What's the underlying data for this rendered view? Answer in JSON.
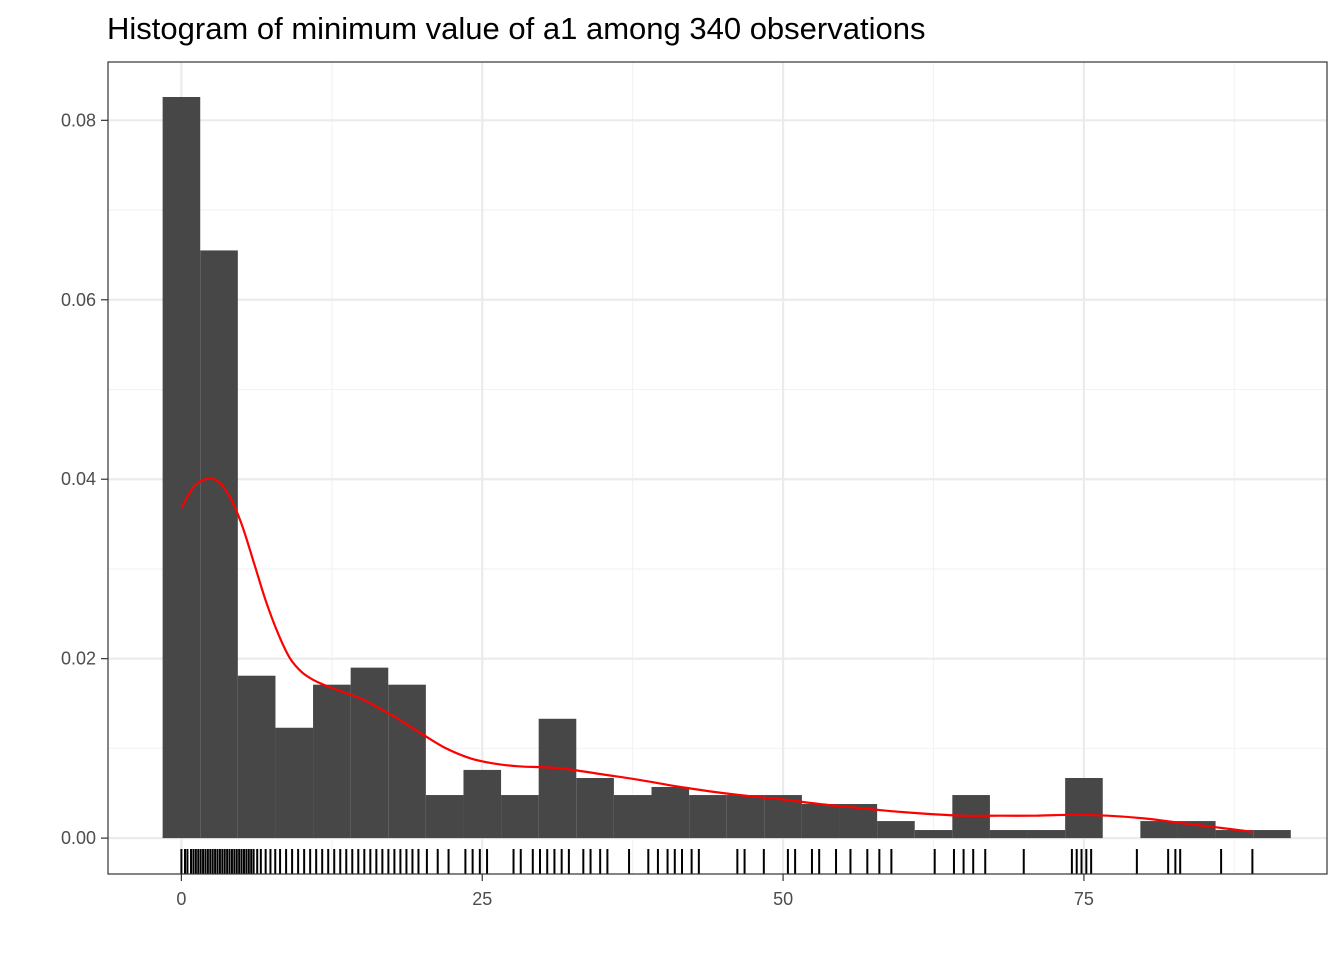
{
  "chart_data": {
    "type": "bar",
    "title": "Histogram of minimum value of a1 among 340 observations",
    "xlabel": "",
    "ylabel": "",
    "xlim": [
      -6.1,
      95.2
    ],
    "ylim": [
      -0.004,
      0.0865
    ],
    "x_ticks": [
      0,
      25,
      50,
      75
    ],
    "x_tick_labels": [
      "0",
      "25",
      "50",
      "75"
    ],
    "y_ticks": [
      0,
      0.02,
      0.04,
      0.06,
      0.08
    ],
    "y_tick_labels": [
      "0.00",
      "0.02",
      "0.04",
      "0.06",
      "0.08"
    ],
    "grid": true,
    "bins": {
      "start": -1.56,
      "width": 3.125,
      "density": [
        0.0826,
        0.0655,
        0.0181,
        0.0123,
        0.0171,
        0.019,
        0.0171,
        0.0048,
        0.0076,
        0.0048,
        0.0133,
        0.0067,
        0.0048,
        0.0057,
        0.0048,
        0.0048,
        0.0048,
        0.0038,
        0.0038,
        0.0019,
        0.0009,
        0.0048,
        0.0009,
        0.0009,
        0.0067,
        0.0,
        0.0019,
        0.0019,
        0.0009,
        0.0009
      ],
      "fill": "#474747"
    },
    "density_curve": {
      "color": "#ff0000",
      "x": [
        0,
        1,
        2,
        3,
        4,
        5,
        6,
        7,
        8,
        9,
        10,
        11,
        12,
        13,
        14,
        15,
        16,
        18,
        20,
        22,
        24,
        26,
        28,
        30,
        32,
        35,
        38,
        41,
        44,
        47,
        50,
        53,
        56,
        59,
        62,
        65,
        68,
        71,
        74,
        77,
        80,
        83,
        86,
        89
      ],
      "y": [
        0.0368,
        0.0391,
        0.04,
        0.0398,
        0.0381,
        0.035,
        0.0308,
        0.0265,
        0.0229,
        0.0201,
        0.0185,
        0.0176,
        0.017,
        0.0165,
        0.016,
        0.0155,
        0.0148,
        0.0133,
        0.0116,
        0.01,
        0.0089,
        0.0083,
        0.008,
        0.0079,
        0.0077,
        0.0071,
        0.0065,
        0.0058,
        0.0052,
        0.0047,
        0.0043,
        0.0038,
        0.0034,
        0.003,
        0.0027,
        0.0025,
        0.0025,
        0.0025,
        0.0026,
        0.0025,
        0.0022,
        0.0017,
        0.0012,
        0.0007
      ]
    },
    "rug": {
      "color": "#000000",
      "x": [
        0.0,
        0.3,
        0.5,
        0.8,
        1.0,
        1.2,
        1.4,
        1.6,
        1.8,
        2.0,
        2.2,
        2.4,
        2.6,
        2.8,
        3.0,
        3.2,
        3.4,
        3.6,
        3.8,
        4.0,
        4.2,
        4.4,
        4.6,
        4.8,
        5.0,
        5.2,
        5.4,
        5.6,
        5.8,
        6.0,
        6.3,
        6.6,
        7.0,
        7.4,
        7.8,
        8.2,
        8.7,
        9.2,
        9.7,
        10.2,
        10.7,
        11.2,
        11.7,
        12.2,
        12.7,
        13.2,
        13.7,
        14.2,
        14.7,
        15.2,
        15.7,
        16.2,
        16.7,
        17.2,
        17.7,
        18.2,
        18.7,
        19.2,
        19.7,
        20.4,
        21.3,
        22.2,
        23.6,
        24.2,
        24.8,
        25.4,
        27.6,
        28.2,
        29.2,
        29.8,
        30.4,
        31.0,
        31.6,
        32.2,
        33.4,
        34.0,
        34.8,
        35.4,
        37.2,
        38.8,
        39.6,
        40.4,
        41.0,
        41.6,
        42.4,
        43.0,
        46.2,
        46.8,
        48.4,
        50.4,
        51.0,
        52.4,
        53.0,
        54.4,
        55.6,
        57.0,
        58.0,
        59.0,
        62.6,
        64.2,
        65.0,
        65.8,
        66.8,
        70.0,
        74.0,
        74.4,
        74.8,
        75.2,
        75.6,
        79.4,
        82.0,
        82.6,
        83.0,
        86.4,
        89.0
      ]
    }
  }
}
